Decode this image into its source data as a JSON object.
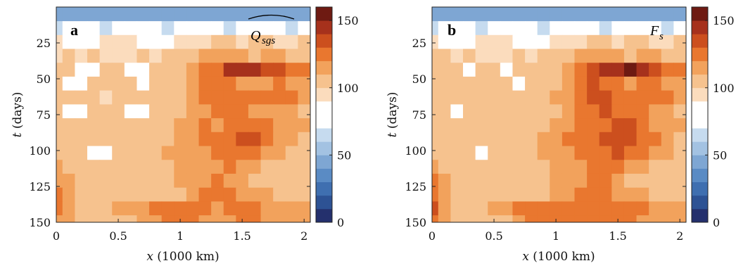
{
  "chart_data": [
    {
      "type": "heatmap",
      "panel_label": "a",
      "title": "Q_sgs",
      "title_main": "Q",
      "title_sub": "sgs",
      "title_accent": "widehat",
      "xlabel_var": "x",
      "xlabel_unit": " (1000 km)",
      "ylabel_var": "t",
      "ylabel_unit": " (days)",
      "xlim": [
        0,
        2.05
      ],
      "ylim": [
        0,
        150
      ],
      "y_reversed": true,
      "x_ticks": [
        0,
        0.5,
        1,
        1.5,
        2
      ],
      "x_tick_labels": [
        "0",
        "0.5",
        "1",
        "1.5",
        "2"
      ],
      "y_ticks": [
        25,
        50,
        75,
        100,
        125,
        150
      ],
      "y_tick_labels": [
        "25",
        "50",
        "75",
        "100",
        "125",
        "150"
      ],
      "colorbar": {
        "range": [
          0,
          160
        ],
        "ticks": [
          0,
          50,
          100,
          150
        ],
        "tick_labels": [
          "0",
          "50",
          "100",
          "150"
        ],
        "levels": 16,
        "step": 10
      },
      "grid": false,
      "note": "Values on a 21 x 16 grid: x from 0 to 2.0 step 0.1 (columns), t from 5 to 150 days step ~9.7 (rows).",
      "t": [
        5,
        14.7,
        24.3,
        34,
        43.7,
        53.3,
        63,
        72.7,
        82.3,
        92,
        101.7,
        111.3,
        121,
        130.7,
        140.3,
        150
      ],
      "x": [
        0,
        0.1,
        0.2,
        0.3,
        0.4,
        0.5,
        0.6,
        0.7,
        0.8,
        0.9,
        1.0,
        1.1,
        1.2,
        1.3,
        1.4,
        1.5,
        1.6,
        1.7,
        1.8,
        1.9,
        2.0
      ],
      "values": [
        [
          40,
          40,
          45,
          40,
          40,
          45,
          40,
          40,
          45,
          40,
          40,
          45,
          40,
          45,
          40,
          40,
          45,
          40,
          40,
          45,
          40
        ],
        [
          65,
          70,
          75,
          70,
          65,
          70,
          70,
          75,
          70,
          65,
          70,
          75,
          70,
          70,
          65,
          70,
          75,
          70,
          70,
          65,
          70
        ],
        [
          90,
          85,
          80,
          85,
          90,
          95,
          90,
          85,
          80,
          85,
          90,
          95,
          95,
          100,
          100,
          95,
          100,
          100,
          95,
          95,
          100
        ],
        [
          95,
          100,
          95,
          100,
          95,
          90,
          95,
          100,
          95,
          100,
          100,
          105,
          110,
          115,
          115,
          110,
          105,
          110,
          110,
          105,
          105
        ],
        [
          100,
          100,
          85,
          85,
          100,
          100,
          85,
          85,
          100,
          100,
          105,
          110,
          120,
          125,
          140,
          145,
          145,
          135,
          130,
          125,
          120
        ],
        [
          100,
          85,
          85,
          100,
          100,
          100,
          100,
          85,
          100,
          100,
          105,
          115,
          120,
          125,
          120,
          115,
          110,
          115,
          120,
          115,
          110
        ],
        [
          105,
          100,
          100,
          100,
          90,
          100,
          100,
          100,
          100,
          105,
          105,
          110,
          120,
          125,
          125,
          120,
          120,
          120,
          125,
          120,
          115
        ],
        [
          100,
          85,
          85,
          100,
          100,
          100,
          85,
          85,
          100,
          100,
          105,
          110,
          115,
          120,
          125,
          125,
          115,
          115,
          110,
          110,
          105
        ],
        [
          100,
          100,
          100,
          100,
          100,
          100,
          100,
          100,
          100,
          105,
          110,
          115,
          120,
          115,
          120,
          125,
          125,
          120,
          115,
          110,
          110
        ],
        [
          100,
          100,
          100,
          100,
          100,
          100,
          100,
          100,
          105,
          105,
          110,
          115,
          120,
          120,
          125,
          130,
          130,
          120,
          115,
          110,
          105
        ],
        [
          100,
          100,
          100,
          85,
          85,
          100,
          100,
          100,
          105,
          110,
          110,
          110,
          115,
          120,
          120,
          125,
          120,
          115,
          110,
          105,
          105
        ],
        [
          110,
          105,
          100,
          100,
          100,
          100,
          100,
          100,
          105,
          105,
          110,
          110,
          115,
          115,
          120,
          115,
          110,
          105,
          105,
          100,
          100
        ],
        [
          115,
          110,
          100,
          100,
          100,
          100,
          100,
          100,
          100,
          105,
          110,
          110,
          115,
          120,
          115,
          110,
          105,
          100,
          100,
          100,
          100
        ],
        [
          120,
          110,
          100,
          100,
          100,
          100,
          100,
          100,
          100,
          105,
          105,
          115,
          120,
          120,
          120,
          115,
          110,
          110,
          105,
          105,
          105
        ],
        [
          120,
          115,
          100,
          100,
          105,
          110,
          110,
          115,
          120,
          120,
          120,
          120,
          120,
          115,
          120,
          120,
          120,
          115,
          115,
          115,
          115
        ],
        [
          115,
          110,
          100,
          100,
          100,
          100,
          105,
          110,
          115,
          120,
          120,
          120,
          115,
          115,
          115,
          120,
          120,
          115,
          115,
          115,
          115
        ]
      ]
    },
    {
      "type": "heatmap",
      "panel_label": "b",
      "title": "F_s",
      "title_main": "F",
      "title_sub": "s",
      "title_accent": "",
      "xlabel_var": "x",
      "xlabel_unit": " (1000 km)",
      "ylabel_var": "t",
      "ylabel_unit": " (days)",
      "xlim": [
        0,
        2.05
      ],
      "ylim": [
        0,
        150
      ],
      "y_reversed": true,
      "x_ticks": [
        0,
        0.5,
        1,
        1.5,
        2
      ],
      "x_tick_labels": [
        "0",
        "0.5",
        "1",
        "1.5",
        "2"
      ],
      "y_ticks": [
        25,
        50,
        75,
        100,
        125,
        150
      ],
      "y_tick_labels": [
        "25",
        "50",
        "75",
        "100",
        "125",
        "150"
      ],
      "colorbar": {
        "range": [
          0,
          160
        ],
        "ticks": [
          0,
          50,
          100,
          150
        ],
        "tick_labels": [
          "0",
          "50",
          "100",
          "150"
        ],
        "levels": 16,
        "step": 10
      },
      "grid": false,
      "t": [
        5,
        14.7,
        24.3,
        34,
        43.7,
        53.3,
        63,
        72.7,
        82.3,
        92,
        101.7,
        111.3,
        121,
        130.7,
        140.3,
        150
      ],
      "x": [
        0,
        0.1,
        0.2,
        0.3,
        0.4,
        0.5,
        0.6,
        0.7,
        0.8,
        0.9,
        1.0,
        1.1,
        1.2,
        1.3,
        1.4,
        1.5,
        1.6,
        1.7,
        1.8,
        1.9,
        2.0
      ],
      "values": [
        [
          40,
          40,
          45,
          40,
          40,
          45,
          40,
          40,
          45,
          40,
          40,
          45,
          40,
          45,
          40,
          40,
          45,
          40,
          40,
          45,
          40
        ],
        [
          65,
          70,
          75,
          70,
          65,
          70,
          70,
          75,
          70,
          65,
          70,
          75,
          70,
          70,
          65,
          70,
          75,
          70,
          70,
          65,
          70
        ],
        [
          90,
          85,
          80,
          85,
          90,
          95,
          90,
          85,
          80,
          85,
          90,
          95,
          95,
          100,
          100,
          95,
          100,
          100,
          95,
          95,
          100
        ],
        [
          100,
          100,
          95,
          100,
          95,
          90,
          95,
          100,
          95,
          100,
          100,
          105,
          110,
          115,
          115,
          110,
          105,
          110,
          110,
          105,
          105
        ],
        [
          100,
          100,
          100,
          85,
          100,
          100,
          85,
          100,
          100,
          100,
          105,
          110,
          120,
          130,
          145,
          145,
          150,
          140,
          130,
          125,
          120
        ],
        [
          100,
          100,
          100,
          100,
          100,
          100,
          100,
          85,
          100,
          100,
          105,
          115,
          120,
          130,
          125,
          120,
          115,
          120,
          120,
          115,
          110
        ],
        [
          105,
          100,
          100,
          100,
          100,
          100,
          100,
          100,
          100,
          105,
          110,
          115,
          120,
          130,
          130,
          125,
          125,
          125,
          125,
          120,
          115
        ],
        [
          100,
          100,
          85,
          100,
          100,
          100,
          100,
          100,
          100,
          100,
          105,
          115,
          120,
          125,
          130,
          125,
          120,
          120,
          115,
          110,
          105
        ],
        [
          100,
          100,
          100,
          100,
          100,
          100,
          100,
          100,
          100,
          105,
          110,
          115,
          120,
          120,
          125,
          130,
          130,
          125,
          115,
          110,
          110
        ],
        [
          100,
          100,
          100,
          100,
          100,
          100,
          100,
          100,
          105,
          110,
          115,
          120,
          125,
          125,
          130,
          135,
          135,
          125,
          120,
          115,
          105
        ],
        [
          105,
          100,
          100,
          100,
          85,
          100,
          100,
          100,
          105,
          110,
          115,
          115,
          120,
          125,
          125,
          130,
          125,
          120,
          115,
          110,
          105
        ],
        [
          115,
          105,
          100,
          100,
          100,
          100,
          100,
          100,
          105,
          105,
          110,
          115,
          115,
          120,
          125,
          120,
          115,
          110,
          105,
          100,
          100
        ],
        [
          120,
          110,
          100,
          100,
          100,
          100,
          100,
          100,
          100,
          105,
          110,
          110,
          115,
          120,
          120,
          115,
          105,
          100,
          100,
          100,
          100
        ],
        [
          125,
          115,
          100,
          100,
          100,
          100,
          100,
          100,
          100,
          105,
          110,
          115,
          120,
          120,
          120,
          115,
          110,
          110,
          105,
          105,
          105
        ],
        [
          130,
          115,
          100,
          100,
          105,
          110,
          115,
          120,
          120,
          120,
          120,
          125,
          125,
          120,
          120,
          120,
          120,
          120,
          115,
          115,
          115
        ],
        [
          120,
          110,
          100,
          100,
          100,
          100,
          105,
          115,
          120,
          125,
          125,
          125,
          120,
          120,
          120,
          120,
          120,
          115,
          115,
          115,
          115
        ]
      ]
    }
  ],
  "palette": [
    "#24306d",
    "#2d5294",
    "#3f6fb0",
    "#5a8bc4",
    "#7ea6d3",
    "#a3c2e2",
    "#c6dbef",
    "#ffffff",
    "#ffffff",
    "#fbdcbd",
    "#f6c28e",
    "#f2a25c",
    "#e9772f",
    "#cc4f1e",
    "#a6311c",
    "#6e1a12"
  ]
}
